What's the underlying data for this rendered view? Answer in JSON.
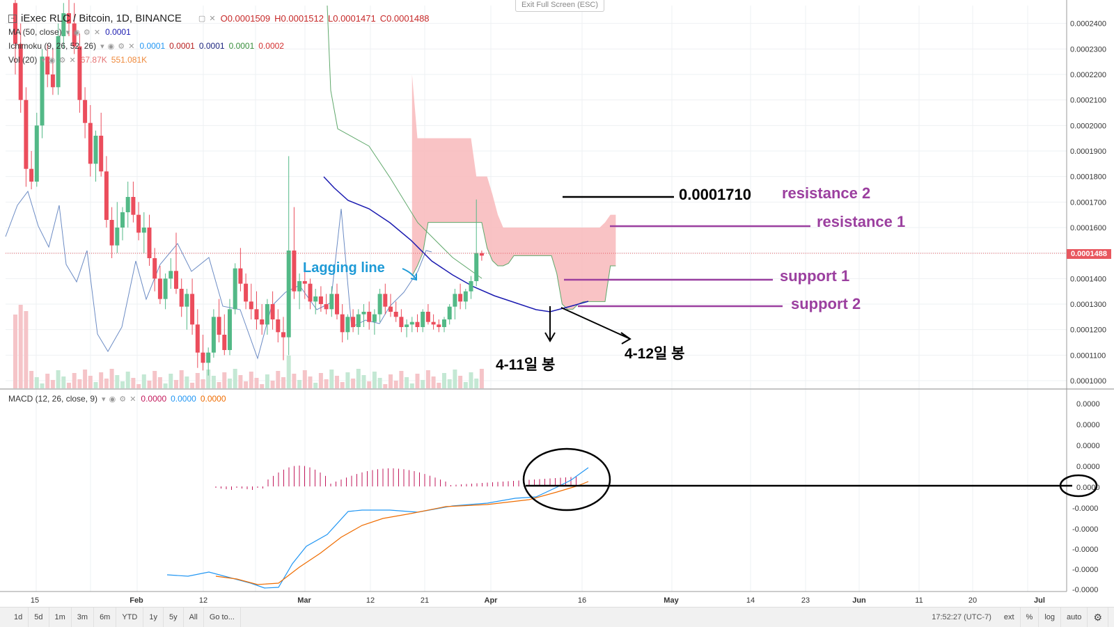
{
  "header": {
    "symbol_title": "iExec RLC / Bitcoin, 1D, BINANCE",
    "ohlc": {
      "o": "O0.0001509",
      "h": "H0.0001512",
      "l": "L0.0001471",
      "c": "C0.0001488"
    },
    "exit_fullscreen": "Exit Full Screen (ESC)"
  },
  "legends": {
    "ma": {
      "label": "MA (50, close)",
      "value": "0.0001"
    },
    "ichimoku": {
      "label": "Ichimoku (9, 26, 52, 26)",
      "values": [
        "0.0001",
        "0.0001",
        "0.0001",
        "0.0001",
        "0.0002"
      ],
      "colors": [
        "#2196f3",
        "#b71c1c",
        "#1a237e",
        "#388e3c",
        "#d32f2f"
      ]
    },
    "vol": {
      "label": "Vol (20)",
      "values": [
        "67.87K",
        "551.081K"
      ]
    },
    "macd": {
      "label": "MACD (12, 26, close, 9)",
      "values": [
        "0.0000",
        "0.0000",
        "0.0000"
      ],
      "colors": [
        "#c2185b",
        "#2196f3",
        "#ef6c00"
      ]
    }
  },
  "price_axis": {
    "ticks": [
      "0.0002400",
      "0.0002300",
      "0.0002200",
      "0.0002100",
      "0.0002000",
      "0.0001900",
      "0.0001800",
      "0.0001700",
      "0.0001600",
      "0.0001500",
      "0.0001400",
      "0.0001300",
      "0.0001200",
      "0.0001100",
      "0.0001000"
    ],
    "current_price": "0.0001488"
  },
  "macd_axis": {
    "ticks": [
      "0.0000",
      "0.0000",
      "0.0000",
      "0.0000",
      "0.0000",
      "-0.0000",
      "-0.0000",
      "-0.0000",
      "-0.0000",
      "-0.0000"
    ]
  },
  "time_axis": {
    "labels": [
      "15",
      "Feb",
      "12",
      "Mar",
      "12",
      "21",
      "Apr",
      "16",
      "May",
      "14",
      "23",
      "Jun",
      "11",
      "20",
      "Jul"
    ]
  },
  "annotations": {
    "lagging_line": "Lagging line",
    "price_label": "0.0001710",
    "resistance2": "resistance 2",
    "resistance1": "resistance 1",
    "support1": "support 1",
    "support2": "support 2",
    "candle_4_11": "4-11일 봉",
    "candle_4_12": "4-12일 봉"
  },
  "toolbar": {
    "ranges": [
      "1d",
      "5d",
      "1m",
      "3m",
      "6m",
      "YTD",
      "1y",
      "5y",
      "All"
    ],
    "goto": "Go to...",
    "time": "17:52:27 (UTC-7)",
    "options": [
      "ext",
      "%",
      "log",
      "auto"
    ]
  },
  "colors": {
    "up": "#53b987",
    "down": "#eb4d5c",
    "cloud": "#f8b9bb",
    "ma": "#1a1ab0",
    "lagging": "#6b8bc4",
    "annotation_purple": "#9b3f9f",
    "annotation_blue": "#1e9ad6"
  },
  "chart_data": {
    "type": "candlestick",
    "ylim": [
      9.7e-05,
      0.000247
    ],
    "candles": [
      {
        "o": 0.000248,
        "h": 0.00025,
        "l": 0.00022,
        "c": 0.000232
      },
      {
        "o": 0.000232,
        "h": 0.00024,
        "l": 0.000205,
        "c": 0.00021
      },
      {
        "o": 0.00021,
        "h": 0.000215,
        "l": 0.000176,
        "c": 0.000183
      },
      {
        "o": 0.000183,
        "h": 0.00019,
        "l": 0.000175,
        "c": 0.000178
      },
      {
        "o": 0.000178,
        "h": 0.000205,
        "l": 0.000176,
        "c": 0.0002
      },
      {
        "o": 0.0002,
        "h": 0.00023,
        "l": 0.000195,
        "c": 0.000227
      },
      {
        "o": 0.000227,
        "h": 0.000232,
        "l": 0.000215,
        "c": 0.00022
      },
      {
        "o": 0.00022,
        "h": 0.00023,
        "l": 0.000212,
        "c": 0.000215
      },
      {
        "o": 0.000215,
        "h": 0.00024,
        "l": 0.000212,
        "c": 0.000235
      },
      {
        "o": 0.000235,
        "h": 0.000248,
        "l": 0.00023,
        "c": 0.000244
      },
      {
        "o": 0.000244,
        "h": 0.00025,
        "l": 0.000235,
        "c": 0.00024
      },
      {
        "o": 0.00024,
        "h": 0.000248,
        "l": 0.000228,
        "c": 0.000231
      },
      {
        "o": 0.000231,
        "h": 0.000236,
        "l": 0.000205,
        "c": 0.00021
      },
      {
        "o": 0.00021,
        "h": 0.000215,
        "l": 0.000195,
        "c": 0.000201
      },
      {
        "o": 0.000201,
        "h": 0.000208,
        "l": 0.00018,
        "c": 0.000185
      },
      {
        "o": 0.000185,
        "h": 0.000198,
        "l": 0.000178,
        "c": 0.000196
      },
      {
        "o": 0.000196,
        "h": 0.000205,
        "l": 0.00018,
        "c": 0.000182
      },
      {
        "o": 0.000182,
        "h": 0.000188,
        "l": 0.00016,
        "c": 0.000163
      },
      {
        "o": 0.000163,
        "h": 0.000168,
        "l": 0.000148,
        "c": 0.000153
      },
      {
        "o": 0.000153,
        "h": 0.00017,
        "l": 0.00015,
        "c": 0.00016
      },
      {
        "o": 0.00016,
        "h": 0.000168,
        "l": 0.000155,
        "c": 0.000166
      },
      {
        "o": 0.000166,
        "h": 0.000178,
        "l": 0.00016,
        "c": 0.000172
      },
      {
        "o": 0.000172,
        "h": 0.000178,
        "l": 0.000162,
        "c": 0.000165
      },
      {
        "o": 0.000165,
        "h": 0.00017,
        "l": 0.000155,
        "c": 0.000158
      },
      {
        "o": 0.000158,
        "h": 0.000166,
        "l": 0.00015,
        "c": 0.00016
      },
      {
        "o": 0.00016,
        "h": 0.000165,
        "l": 0.000145,
        "c": 0.000148
      },
      {
        "o": 0.000148,
        "h": 0.000152,
        "l": 0.000135,
        "c": 0.00014
      },
      {
        "o": 0.00014,
        "h": 0.000145,
        "l": 0.00013,
        "c": 0.000132
      },
      {
        "o": 0.000132,
        "h": 0.000142,
        "l": 0.000128,
        "c": 0.00014
      },
      {
        "o": 0.00014,
        "h": 0.000148,
        "l": 0.000136,
        "c": 0.000143
      },
      {
        "o": 0.000143,
        "h": 0.000158,
        "l": 0.000134,
        "c": 0.000136
      },
      {
        "o": 0.000136,
        "h": 0.00014,
        "l": 0.000125,
        "c": 0.000129
      },
      {
        "o": 0.000129,
        "h": 0.000136,
        "l": 0.00012,
        "c": 0.000134
      },
      {
        "o": 0.000134,
        "h": 0.00014,
        "l": 0.000118,
        "c": 0.000122
      },
      {
        "o": 0.000122,
        "h": 0.000128,
        "l": 0.000105,
        "c": 0.000111
      },
      {
        "o": 0.000111,
        "h": 0.000118,
        "l": 0.000104,
        "c": 0.000107
      },
      {
        "o": 0.000107,
        "h": 0.000113,
        "l": 0.000102,
        "c": 0.000111
      },
      {
        "o": 0.000111,
        "h": 0.000128,
        "l": 0.000109,
        "c": 0.000125
      },
      {
        "o": 0.000125,
        "h": 0.000132,
        "l": 0.000115,
        "c": 0.000118
      },
      {
        "o": 0.000118,
        "h": 0.000126,
        "l": 0.00011,
        "c": 0.000112
      },
      {
        "o": 0.000112,
        "h": 0.000132,
        "l": 0.00011,
        "c": 0.000128
      },
      {
        "o": 0.000128,
        "h": 0.000146,
        "l": 0.000126,
        "c": 0.000144
      },
      {
        "o": 0.000144,
        "h": 0.000152,
        "l": 0.000135,
        "c": 0.000138
      },
      {
        "o": 0.000138,
        "h": 0.000142,
        "l": 0.000128,
        "c": 0.000131
      },
      {
        "o": 0.000131,
        "h": 0.000138,
        "l": 0.000124,
        "c": 0.000128
      },
      {
        "o": 0.000128,
        "h": 0.000135,
        "l": 0.00012,
        "c": 0.000124
      },
      {
        "o": 0.000124,
        "h": 0.00013,
        "l": 0.000118,
        "c": 0.000122
      },
      {
        "o": 0.000122,
        "h": 0.000132,
        "l": 0.000118,
        "c": 0.00013
      },
      {
        "o": 0.00013,
        "h": 0.000135,
        "l": 0.00012,
        "c": 0.000124
      },
      {
        "o": 0.000124,
        "h": 0.000128,
        "l": 0.000115,
        "c": 0.000119
      },
      {
        "o": 0.000119,
        "h": 0.000125,
        "l": 0.000108,
        "c": 0.000117
      },
      {
        "o": 0.000117,
        "h": 0.000188,
        "l": 0.00011,
        "c": 0.000151
      },
      {
        "o": 0.000151,
        "h": 0.000168,
        "l": 0.000132,
        "c": 0.000135
      },
      {
        "o": 0.000135,
        "h": 0.000142,
        "l": 0.000128,
        "c": 0.000139
      },
      {
        "o": 0.000139,
        "h": 0.000145,
        "l": 0.000132,
        "c": 0.000138
      },
      {
        "o": 0.000138,
        "h": 0.00014,
        "l": 0.000128,
        "c": 0.000131
      },
      {
        "o": 0.000131,
        "h": 0.000136,
        "l": 0.000126,
        "c": 0.000133
      },
      {
        "o": 0.000133,
        "h": 0.000137,
        "l": 0.000127,
        "c": 0.00013
      },
      {
        "o": 0.00013,
        "h": 0.000134,
        "l": 0.000126,
        "c": 0.000128
      },
      {
        "o": 0.000128,
        "h": 0.000137,
        "l": 0.000125,
        "c": 0.000134
      },
      {
        "o": 0.000134,
        "h": 0.000138,
        "l": 0.000124,
        "c": 0.000126
      },
      {
        "o": 0.000126,
        "h": 0.00013,
        "l": 0.000115,
        "c": 0.000119
      },
      {
        "o": 0.000119,
        "h": 0.000126,
        "l": 0.000116,
        "c": 0.000125
      },
      {
        "o": 0.000125,
        "h": 0.000128,
        "l": 0.000119,
        "c": 0.000121
      },
      {
        "o": 0.000121,
        "h": 0.000128,
        "l": 0.000118,
        "c": 0.000126
      },
      {
        "o": 0.000126,
        "h": 0.00013,
        "l": 0.000121,
        "c": 0.000127
      },
      {
        "o": 0.000127,
        "h": 0.000131,
        "l": 0.00012,
        "c": 0.000123
      },
      {
        "o": 0.000123,
        "h": 0.000128,
        "l": 0.000118,
        "c": 0.000126
      },
      {
        "o": 0.000126,
        "h": 0.000136,
        "l": 0.000123,
        "c": 0.000134
      },
      {
        "o": 0.000134,
        "h": 0.000138,
        "l": 0.000126,
        "c": 0.000129
      },
      {
        "o": 0.000129,
        "h": 0.000134,
        "l": 0.000125,
        "c": 0.000127
      },
      {
        "o": 0.000127,
        "h": 0.000131,
        "l": 0.000123,
        "c": 0.000125
      },
      {
        "o": 0.000125,
        "h": 0.000128,
        "l": 0.000119,
        "c": 0.000121
      },
      {
        "o": 0.000121,
        "h": 0.000124,
        "l": 0.000117,
        "c": 0.000122
      },
      {
        "o": 0.000122,
        "h": 0.000125,
        "l": 0.000119,
        "c": 0.000123
      },
      {
        "o": 0.000123,
        "h": 0.000126,
        "l": 0.000119,
        "c": 0.000121
      },
      {
        "o": 0.000121,
        "h": 0.000128,
        "l": 0.000119,
        "c": 0.000127
      },
      {
        "o": 0.000127,
        "h": 0.00013,
        "l": 0.000122,
        "c": 0.000123
      },
      {
        "o": 0.000123,
        "h": 0.000126,
        "l": 0.00012,
        "c": 0.000122
      },
      {
        "o": 0.000122,
        "h": 0.000124,
        "l": 0.000119,
        "c": 0.000121
      },
      {
        "o": 0.000121,
        "h": 0.000125,
        "l": 0.000119,
        "c": 0.000124
      },
      {
        "o": 0.000124,
        "h": 0.00013,
        "l": 0.000122,
        "c": 0.000129
      },
      {
        "o": 0.000129,
        "h": 0.000136,
        "l": 0.000124,
        "c": 0.000134
      },
      {
        "o": 0.000134,
        "h": 0.000138,
        "l": 0.000128,
        "c": 0.000131
      },
      {
        "o": 0.000131,
        "h": 0.000136,
        "l": 0.000128,
        "c": 0.000135
      },
      {
        "o": 0.000135,
        "h": 0.000141,
        "l": 0.000132,
        "c": 0.000139
      },
      {
        "o": 0.000139,
        "h": 0.000171,
        "l": 0.000137,
        "c": 0.00015
      },
      {
        "o": 0.00015,
        "h": 0.000151,
        "l": 0.000147,
        "c": 0.000149
      }
    ],
    "cloud": {
      "start_index": 74,
      "top": [
        0.00022,
        0.000195,
        0.000195,
        0.000195,
        0.000195,
        0.000195,
        0.000195,
        0.000195,
        0.000195,
        0.000195,
        0.000195,
        0.000195,
        0.00018,
        0.00018,
        0.00018,
        0.000173,
        0.000165,
        0.00016,
        0.00016,
        0.00016,
        0.00016,
        0.00016,
        0.00016,
        0.00016,
        0.00016,
        0.00016,
        0.00016,
        0.00016,
        0.00016,
        0.00016,
        0.00016,
        0.00016,
        0.00016,
        0.00016,
        0.00016,
        0.00016,
        0.000162,
        0.000165,
        0.000165
      ],
      "bottom": [
        0.000141,
        0.000145,
        0.00015,
        0.000162,
        0.000162,
        0.000162,
        0.000162,
        0.000162,
        0.000162,
        0.000162,
        0.000162,
        0.000162,
        0.000162,
        0.000162,
        0.000152,
        0.000147,
        0.000145,
        0.000145,
        0.000146,
        0.000149,
        0.000149,
        0.000149,
        0.000149,
        0.000149,
        0.000149,
        0.000149,
        0.000149,
        0.000142,
        0.00013,
        0.000128,
        0.000128,
        0.00013,
        0.000131,
        0.000131,
        0.000131,
        0.000131,
        0.000131,
        0.000145,
        0.000145
      ]
    }
  }
}
